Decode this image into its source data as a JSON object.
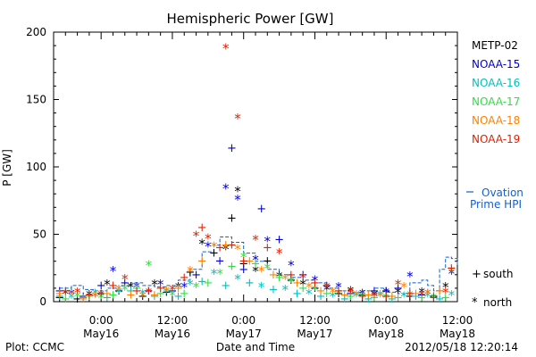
{
  "chart_data": {
    "type": "scatter",
    "title": "Hemispheric Power [GW]",
    "xlabel": "Date and Time",
    "ylabel": "P [GW]",
    "x_unit": "hours",
    "x_range": [
      -8,
      60
    ],
    "ylim": [
      0,
      200
    ],
    "y_ticks": [
      0,
      50,
      100,
      150,
      200
    ],
    "x_ticks": [
      {
        "x": 0,
        "time": "0:00",
        "date": "May16"
      },
      {
        "x": 12,
        "time": "12:00",
        "date": "May16"
      },
      {
        "x": 24,
        "time": "0:00",
        "date": "May17"
      },
      {
        "x": 36,
        "time": "12:00",
        "date": "May17"
      },
      {
        "x": 48,
        "time": "0:00",
        "date": "May18"
      },
      {
        "x": 60,
        "time": "12:00",
        "date": "May18"
      }
    ],
    "grid": false,
    "legend_position": "right",
    "series": [
      {
        "name": "METP-02",
        "color": "#000000",
        "values": [
          [
            -7,
            3
          ],
          [
            -6,
            5
          ],
          [
            -4,
            2
          ],
          [
            -2,
            4
          ],
          [
            0,
            6
          ],
          [
            1,
            12
          ],
          [
            3,
            8
          ],
          [
            5,
            10
          ],
          [
            7,
            4
          ],
          [
            9,
            12
          ],
          [
            11,
            7
          ],
          [
            13,
            10
          ],
          [
            15,
            22
          ],
          [
            17,
            42
          ],
          [
            19,
            36
          ],
          [
            21,
            38
          ],
          [
            22,
            62
          ],
          [
            23,
            81
          ],
          [
            24,
            28
          ],
          [
            26,
            22
          ],
          [
            28,
            30
          ],
          [
            30,
            18
          ],
          [
            32,
            16
          ],
          [
            34,
            12
          ],
          [
            36,
            10
          ],
          [
            38,
            8
          ],
          [
            40,
            6
          ],
          [
            42,
            7
          ],
          [
            44,
            5
          ],
          [
            46,
            4
          ],
          [
            48,
            8
          ],
          [
            50,
            6
          ],
          [
            52,
            4
          ],
          [
            54,
            6
          ],
          [
            56,
            4
          ],
          [
            58,
            10
          ]
        ]
      },
      {
        "name": "NOAA-15",
        "color": "#0000d0",
        "values": [
          [
            -7,
            8
          ],
          [
            -5,
            5
          ],
          [
            -3,
            4
          ],
          [
            -1,
            3
          ],
          [
            0,
            12
          ],
          [
            2,
            22
          ],
          [
            4,
            14
          ],
          [
            6,
            10
          ],
          [
            8,
            8
          ],
          [
            10,
            12
          ],
          [
            12,
            8
          ],
          [
            14,
            10
          ],
          [
            16,
            20
          ],
          [
            18,
            40
          ],
          [
            20,
            30
          ],
          [
            21,
            83
          ],
          [
            22,
            114
          ],
          [
            23,
            75
          ],
          [
            24,
            24
          ],
          [
            26,
            30
          ],
          [
            27,
            69
          ],
          [
            28,
            44
          ],
          [
            30,
            46
          ],
          [
            32,
            26
          ],
          [
            34,
            20
          ],
          [
            36,
            15
          ],
          [
            38,
            12
          ],
          [
            40,
            10
          ],
          [
            42,
            6
          ],
          [
            44,
            5
          ],
          [
            46,
            8
          ],
          [
            48,
            6
          ],
          [
            50,
            10
          ],
          [
            52,
            18
          ],
          [
            54,
            5
          ],
          [
            55,
            5
          ],
          [
            57,
            8
          ],
          [
            59,
            20
          ]
        ]
      },
      {
        "name": "NOAA-16",
        "color": "#00c0c0",
        "values": [
          [
            -7,
            4
          ],
          [
            -5,
            2
          ],
          [
            -3,
            3
          ],
          [
            -1,
            5
          ],
          [
            1,
            3
          ],
          [
            3,
            6
          ],
          [
            5,
            8
          ],
          [
            7,
            5
          ],
          [
            9,
            4
          ],
          [
            11,
            6
          ],
          [
            13,
            4
          ],
          [
            15,
            12
          ],
          [
            17,
            15
          ],
          [
            19,
            20
          ],
          [
            21,
            12
          ],
          [
            23,
            16
          ],
          [
            25,
            14
          ],
          [
            27,
            10
          ],
          [
            29,
            9
          ],
          [
            31,
            8
          ],
          [
            33,
            6
          ],
          [
            35,
            5
          ],
          [
            37,
            4
          ],
          [
            39,
            3
          ],
          [
            41,
            2
          ],
          [
            43,
            3
          ],
          [
            45,
            2
          ],
          [
            47,
            4
          ],
          [
            49,
            2
          ],
          [
            51,
            3
          ],
          [
            53,
            4
          ],
          [
            55,
            3
          ],
          [
            57,
            2
          ],
          [
            59,
            4
          ]
        ]
      },
      {
        "name": "NOAA-17",
        "color": "#30e040",
        "values": [
          [
            -6,
            2
          ],
          [
            -4,
            3
          ],
          [
            -2,
            4
          ],
          [
            0,
            2
          ],
          [
            2,
            5
          ],
          [
            4,
            8
          ],
          [
            6,
            10
          ],
          [
            8,
            26
          ],
          [
            10,
            6
          ],
          [
            12,
            4
          ],
          [
            14,
            6
          ],
          [
            16,
            10
          ],
          [
            18,
            14
          ],
          [
            20,
            20
          ],
          [
            22,
            26
          ],
          [
            24,
            32
          ],
          [
            26,
            28
          ],
          [
            28,
            24
          ],
          [
            30,
            18
          ],
          [
            32,
            14
          ],
          [
            34,
            10
          ],
          [
            36,
            8
          ],
          [
            38,
            6
          ],
          [
            40,
            5
          ],
          [
            42,
            4
          ],
          [
            44,
            3
          ],
          [
            46,
            3
          ],
          [
            48,
            2
          ],
          [
            50,
            3
          ],
          [
            52,
            4
          ],
          [
            54,
            3
          ],
          [
            56,
            2
          ],
          [
            58,
            3
          ]
        ]
      },
      {
        "name": "NOAA-18",
        "color": "#ff8000",
        "values": [
          [
            -7,
            6
          ],
          [
            -5,
            4
          ],
          [
            -3,
            2
          ],
          [
            -1,
            3
          ],
          [
            1,
            6
          ],
          [
            3,
            8
          ],
          [
            5,
            5
          ],
          [
            7,
            3
          ],
          [
            9,
            5
          ],
          [
            11,
            7
          ],
          [
            13,
            10
          ],
          [
            15,
            22
          ],
          [
            17,
            30
          ],
          [
            19,
            40
          ],
          [
            21,
            42
          ],
          [
            23,
            38
          ],
          [
            25,
            30
          ],
          [
            27,
            22
          ],
          [
            29,
            20
          ],
          [
            31,
            16
          ],
          [
            33,
            14
          ],
          [
            35,
            10
          ],
          [
            37,
            8
          ],
          [
            39,
            6
          ],
          [
            41,
            5
          ],
          [
            43,
            4
          ],
          [
            45,
            5
          ],
          [
            47,
            3
          ],
          [
            49,
            4
          ],
          [
            51,
            10
          ],
          [
            53,
            6
          ],
          [
            55,
            5
          ],
          [
            57,
            8
          ],
          [
            59,
            22
          ]
        ]
      },
      {
        "name": "NOAA-19",
        "color": "#e02000",
        "values": [
          [
            -6,
            8
          ],
          [
            -4,
            6
          ],
          [
            -2,
            5
          ],
          [
            0,
            4
          ],
          [
            2,
            12
          ],
          [
            4,
            16
          ],
          [
            6,
            8
          ],
          [
            8,
            6
          ],
          [
            10,
            10
          ],
          [
            12,
            8
          ],
          [
            14,
            18
          ],
          [
            16,
            48
          ],
          [
            17,
            55
          ],
          [
            18,
            46
          ],
          [
            20,
            40
          ],
          [
            21,
            187
          ],
          [
            22,
            42
          ],
          [
            23,
            135
          ],
          [
            24,
            30
          ],
          [
            26,
            45
          ],
          [
            28,
            40
          ],
          [
            30,
            35
          ],
          [
            32,
            20
          ],
          [
            34,
            17
          ],
          [
            36,
            14
          ],
          [
            38,
            10
          ],
          [
            40,
            8
          ],
          [
            42,
            6
          ],
          [
            44,
            4
          ],
          [
            46,
            3
          ],
          [
            48,
            4
          ],
          [
            50,
            12
          ],
          [
            52,
            6
          ],
          [
            54,
            4
          ],
          [
            56,
            3
          ],
          [
            58,
            6
          ],
          [
            59,
            25
          ]
        ]
      }
    ],
    "ovation": {
      "name_line1": "Ovation",
      "name_line2": "Prime HPI",
      "color": "#1060d0",
      "values": [
        [
          -7,
          10
        ],
        [
          -5,
          12
        ],
        [
          -3,
          9
        ],
        [
          -1,
          8
        ],
        [
          1,
          10
        ],
        [
          3,
          12
        ],
        [
          5,
          14
        ],
        [
          7,
          12
        ],
        [
          9,
          11
        ],
        [
          11,
          12
        ],
        [
          13,
          16
        ],
        [
          15,
          24
        ],
        [
          17,
          37
        ],
        [
          19,
          42
        ],
        [
          20,
          48
        ],
        [
          22,
          44
        ],
        [
          24,
          36
        ],
        [
          26,
          30
        ],
        [
          28,
          24
        ],
        [
          30,
          20
        ],
        [
          32,
          18
        ],
        [
          34,
          16
        ],
        [
          36,
          14
        ],
        [
          38,
          10
        ],
        [
          40,
          8
        ],
        [
          42,
          7
        ],
        [
          44,
          8
        ],
        [
          46,
          10
        ],
        [
          48,
          7
        ],
        [
          50,
          6
        ],
        [
          52,
          14
        ],
        [
          54,
          16
        ],
        [
          55,
          12
        ],
        [
          56,
          8
        ],
        [
          57,
          24
        ],
        [
          58,
          33
        ],
        [
          59,
          32
        ],
        [
          60,
          26
        ]
      ]
    },
    "marker_key": [
      {
        "symbol": "+",
        "label": "south"
      },
      {
        "symbol": "*",
        "label": "north"
      }
    ],
    "footer": {
      "left": "Plot: CCMC",
      "right": "2012/05/18 12:20:14"
    }
  }
}
